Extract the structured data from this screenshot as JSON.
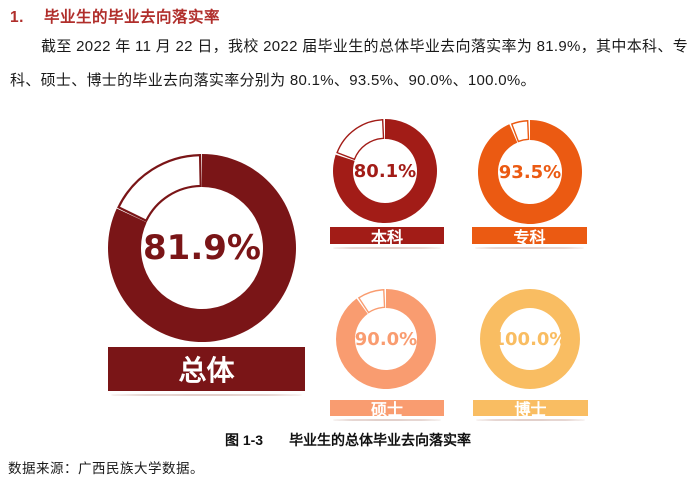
{
  "heading": {
    "number": "1.",
    "title": "毕业生的毕业去向落实率",
    "color": "#B02E2B"
  },
  "paragraph": {
    "text": "截至 2022 年 11 月 22 日，我校 2022 届毕业生的总体毕业去向落实率为 81.9%，其中本科、专科、硕士、博士的毕业去向落实率分别为 80.1%、93.5%、90.0%、100.0%。"
  },
  "chart_data": {
    "type": "pie",
    "subtype": "donut-gauge-set",
    "title": "毕业生的总体毕业去向落实率",
    "unit": "%",
    "max": 100,
    "empty_color": "#FFFFFF",
    "series": [
      {
        "name": "总体",
        "value": 81.9,
        "label": "81.9%",
        "color": "#7A1517"
      },
      {
        "name": "本科",
        "value": 80.1,
        "label": "80.1%",
        "color": "#A21C17"
      },
      {
        "name": "专科",
        "value": 93.5,
        "label": "93.5%",
        "color": "#EB5A12"
      },
      {
        "name": "硕士",
        "value": 90.0,
        "label": "90.0%",
        "color": "#F99C70"
      },
      {
        "name": "博士",
        "value": 100.0,
        "label": "100.0%",
        "color": "#F9BD62"
      }
    ]
  },
  "caption": {
    "figure_no": "图 1-3",
    "title": "毕业生的总体毕业去向落实率"
  },
  "source_note": "数据来源：广西民族大学数据。"
}
